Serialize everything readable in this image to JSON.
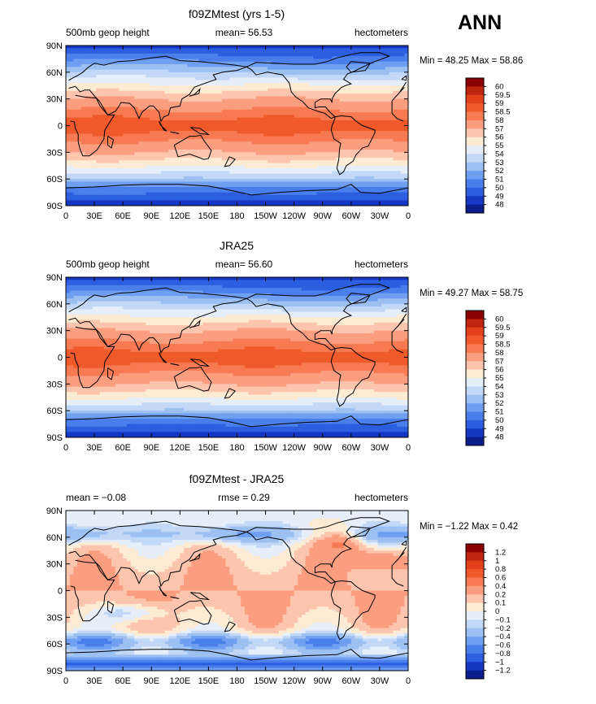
{
  "season": "ANN",
  "panels": [
    {
      "id": "model",
      "title": "f09ZMtest (yrs 1-5)",
      "left_label": "500mb geop height",
      "center_label": "mean=  56.53",
      "right_label": "hectometers",
      "stats": "Min =  48.25 Max =  58.86",
      "colorbar_levels": [
        "60",
        "59.5",
        "59",
        "58.5",
        "58",
        "57",
        "56",
        "55",
        "54",
        "53",
        "52",
        "51",
        "50",
        "49",
        "48"
      ],
      "colorbar_colors": [
        "#8b0000",
        "#c0260f",
        "#e2411a",
        "#f05a2b",
        "#f77a52",
        "#fb9e80",
        "#fdc5ae",
        "#fdebd4",
        "#e6eefa",
        "#c2d8f6",
        "#9cc0f2",
        "#6f9ff0",
        "#4a7eeb",
        "#2d5ee0",
        "#1437c4",
        "#0a1d8a"
      ],
      "field": "height"
    },
    {
      "id": "obs",
      "title": "JRA25",
      "left_label": "500mb geop height",
      "center_label": "mean=  56.60",
      "right_label": "hectometers",
      "stats": "Min =  49.27 Max =  58.75",
      "colorbar_levels": [
        "60",
        "59.5",
        "59",
        "58.5",
        "58",
        "57",
        "56",
        "55",
        "54",
        "53",
        "52",
        "51",
        "50",
        "49",
        "48"
      ],
      "colorbar_colors": [
        "#8b0000",
        "#c0260f",
        "#e2411a",
        "#f05a2b",
        "#f77a52",
        "#fb9e80",
        "#fdc5ae",
        "#fdebd4",
        "#e6eefa",
        "#c2d8f6",
        "#9cc0f2",
        "#6f9ff0",
        "#4a7eeb",
        "#2d5ee0",
        "#1437c4",
        "#0a1d8a"
      ],
      "field": "height"
    },
    {
      "id": "diff",
      "title": "f09ZMtest - JRA25",
      "left_label": "mean =  −0.08",
      "center_label": "rmse =   0.29",
      "right_label": "hectometers",
      "stats": "Min =  −1.22 Max =   0.42",
      "colorbar_levels": [
        "1.2",
        "1",
        "0.8",
        "0.6",
        "0.4",
        "0.2",
        "0.1",
        "0",
        "−0.1",
        "−0.2",
        "−0.4",
        "−0.6",
        "−0.8",
        "−1",
        "−1.2"
      ],
      "colorbar_colors": [
        "#8b0000",
        "#c0260f",
        "#e2411a",
        "#f05a2b",
        "#f77a52",
        "#fb9e80",
        "#fdc5ae",
        "#fdebd4",
        "#e6eefa",
        "#c2d8f6",
        "#9cc0f2",
        "#6f9ff0",
        "#4a7eeb",
        "#2d5ee0",
        "#1437c4",
        "#0a1d8a"
      ],
      "field": "diff"
    }
  ],
  "lat_labels": [
    "90N",
    "60N",
    "30N",
    "0",
    "30S",
    "60S",
    "90S"
  ],
  "lon_labels": [
    "0",
    "30E",
    "60E",
    "90E",
    "120E",
    "150E",
    "180",
    "150W",
    "120W",
    "90W",
    "60W",
    "30W",
    "0"
  ]
}
